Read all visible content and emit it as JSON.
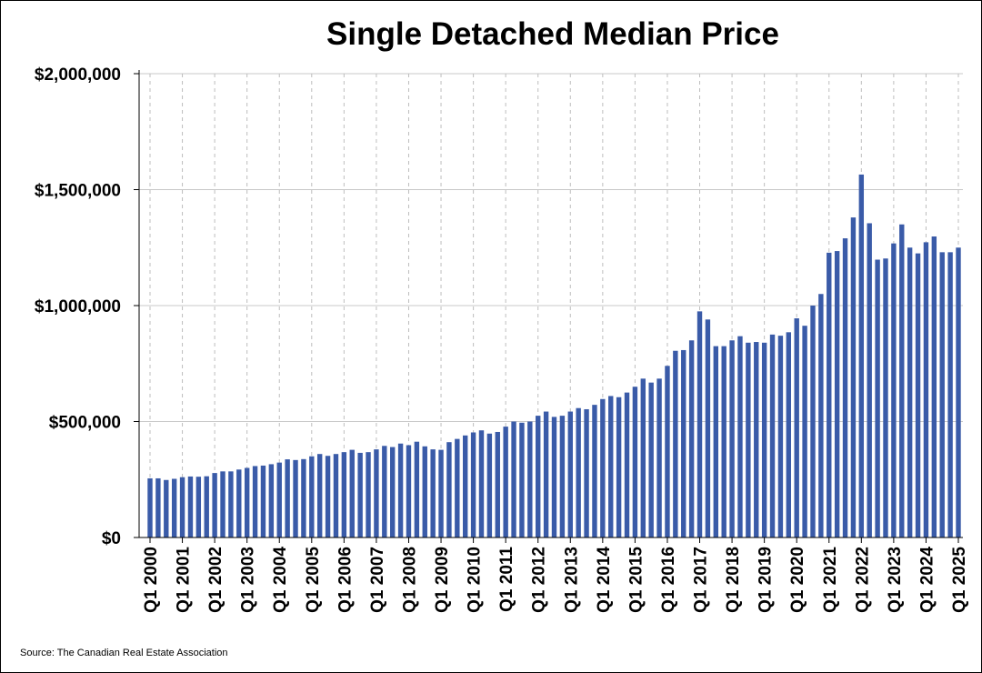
{
  "chart_data": {
    "type": "bar",
    "title": "Single Detached Median Price",
    "xlabel": "",
    "ylabel": "",
    "ylim": [
      0,
      2000000
    ],
    "y_ticks": [
      0,
      500000,
      1000000,
      1500000,
      2000000
    ],
    "y_tick_labels": [
      "$0",
      "$500,000",
      "$1,000,000",
      "$1,500,000",
      "$2,000,000"
    ],
    "x_tick_labels": [
      "Q1 2000",
      "Q1 2001",
      "Q1 2002",
      "Q1 2003",
      "Q1 2004",
      "Q1 2005",
      "Q1 2006",
      "Q1 2007",
      "Q1 2008",
      "Q1 2009",
      "Q1 2010",
      "Q1 2011",
      "Q1 2012",
      "Q1 2013",
      "Q1 2014",
      "Q1 2015",
      "Q1 2016",
      "Q1 2017",
      "Q1 2018",
      "Q1 2019",
      "Q1 2020",
      "Q1 2021",
      "Q1 2022",
      "Q1 2023",
      "Q1 2024",
      "Q1 2025"
    ],
    "grid": "horizontal solid, vertical dashed at each Q1",
    "bar_color": "#3a5ba8",
    "categories": [
      "Q1 2000",
      "Q2 2000",
      "Q3 2000",
      "Q4 2000",
      "Q1 2001",
      "Q2 2001",
      "Q3 2001",
      "Q4 2001",
      "Q1 2002",
      "Q2 2002",
      "Q3 2002",
      "Q4 2002",
      "Q1 2003",
      "Q2 2003",
      "Q3 2003",
      "Q4 2003",
      "Q1 2004",
      "Q2 2004",
      "Q3 2004",
      "Q4 2004",
      "Q1 2005",
      "Q2 2005",
      "Q3 2005",
      "Q4 2005",
      "Q1 2006",
      "Q2 2006",
      "Q3 2006",
      "Q4 2006",
      "Q1 2007",
      "Q2 2007",
      "Q3 2007",
      "Q4 2007",
      "Q1 2008",
      "Q2 2008",
      "Q3 2008",
      "Q4 2008",
      "Q1 2009",
      "Q2 2009",
      "Q3 2009",
      "Q4 2009",
      "Q1 2010",
      "Q2 2010",
      "Q3 2010",
      "Q4 2010",
      "Q1 2011",
      "Q2 2011",
      "Q3 2011",
      "Q4 2011",
      "Q1 2012",
      "Q2 2012",
      "Q3 2012",
      "Q4 2012",
      "Q1 2013",
      "Q2 2013",
      "Q3 2013",
      "Q4 2013",
      "Q1 2014",
      "Q2 2014",
      "Q3 2014",
      "Q4 2014",
      "Q1 2015",
      "Q2 2015",
      "Q3 2015",
      "Q4 2015",
      "Q1 2016",
      "Q2 2016",
      "Q3 2016",
      "Q4 2016",
      "Q1 2017",
      "Q2 2017",
      "Q3 2017",
      "Q4 2017",
      "Q1 2018",
      "Q2 2018",
      "Q3 2018",
      "Q4 2018",
      "Q1 2019",
      "Q2 2019",
      "Q3 2019",
      "Q4 2019",
      "Q1 2020",
      "Q2 2020",
      "Q3 2020",
      "Q4 2020",
      "Q1 2021",
      "Q2 2021",
      "Q3 2021",
      "Q4 2021",
      "Q1 2022",
      "Q2 2022",
      "Q3 2022",
      "Q4 2022",
      "Q1 2023",
      "Q2 2023",
      "Q3 2023",
      "Q4 2023",
      "Q1 2024",
      "Q2 2024",
      "Q3 2024",
      "Q4 2024",
      "Q1 2025"
    ],
    "values": [
      255000,
      255000,
      248000,
      253000,
      260000,
      263000,
      262000,
      264000,
      278000,
      285000,
      285000,
      293000,
      300000,
      308000,
      310000,
      316000,
      323000,
      337000,
      334000,
      338000,
      350000,
      360000,
      352000,
      360000,
      368000,
      378000,
      365000,
      368000,
      380000,
      395000,
      390000,
      405000,
      398000,
      413000,
      393000,
      380000,
      378000,
      411000,
      425000,
      440000,
      453000,
      462000,
      448000,
      455000,
      478000,
      500000,
      495000,
      500000,
      525000,
      543000,
      520000,
      525000,
      543000,
      558000,
      553000,
      572000,
      597000,
      610000,
      605000,
      625000,
      650000,
      685000,
      668000,
      685000,
      740000,
      805000,
      808000,
      850000,
      975000,
      940000,
      825000,
      825000,
      850000,
      868000,
      840000,
      843000,
      840000,
      875000,
      870000,
      885000,
      945000,
      913000,
      1000000,
      1050000,
      1228000,
      1235000,
      1290000,
      1380000,
      1565000,
      1355000,
      1198000,
      1203000,
      1268000,
      1350000,
      1250000,
      1225000,
      1273000,
      1298000,
      1230000,
      1230000,
      1250000
    ]
  },
  "source": "Source: The Canadian Real Estate Association"
}
